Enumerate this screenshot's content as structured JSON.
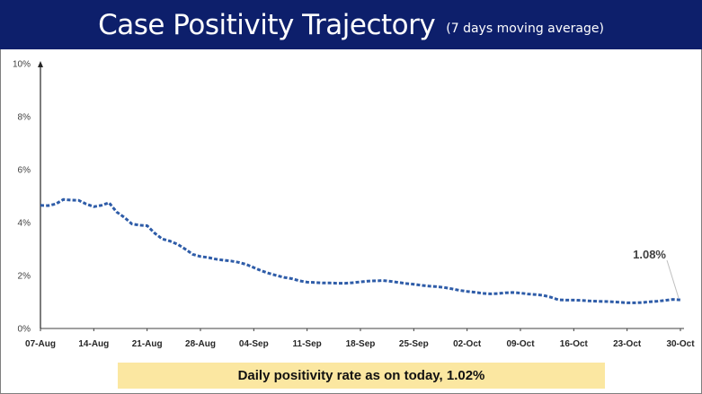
{
  "header": {
    "title": "Case Positivity Trajectory",
    "subtitle": "(7 days moving average)"
  },
  "footer": {
    "text": "Daily positivity rate as on today, 1.02%"
  },
  "colors": {
    "header_background": "#0d1f6b",
    "line": "#2e5ca8",
    "footer_background": "#fbe7a1",
    "annotation_leader": "#bfbfbf"
  },
  "chart_data": {
    "type": "line",
    "title": "Case Positivity Trajectory",
    "subtitle": "(7 days moving average)",
    "xlabel": "",
    "ylabel": "",
    "grid": false,
    "line_style": "dashed",
    "y_tick_labels": [
      "0%",
      "2%",
      "4%",
      "6%",
      "8%",
      "10%"
    ],
    "ylim": [
      0,
      10
    ],
    "x_tick_labels": [
      "07-Aug",
      "14-Aug",
      "21-Aug",
      "28-Aug",
      "04-Sep",
      "11-Sep",
      "18-Sep",
      "25-Sep",
      "02-Oct",
      "09-Oct",
      "16-Oct",
      "23-Oct",
      "30-Oct"
    ],
    "xlim": [
      "07-Aug",
      "30-Oct"
    ],
    "annotation": {
      "text": "1.08%",
      "date": "30-Oct",
      "value": 1.08
    },
    "series": [
      {
        "x": [
          "07-Aug",
          "08-Aug",
          "09-Aug",
          "10-Aug",
          "11-Aug",
          "12-Aug",
          "13-Aug",
          "14-Aug",
          "15-Aug",
          "16-Aug",
          "17-Aug",
          "18-Aug",
          "19-Aug",
          "20-Aug",
          "21-Aug",
          "22-Aug",
          "23-Aug",
          "24-Aug",
          "25-Aug",
          "26-Aug",
          "27-Aug",
          "28-Aug",
          "29-Aug",
          "30-Aug",
          "31-Aug",
          "01-Sep",
          "02-Sep",
          "03-Sep",
          "04-Sep",
          "05-Sep",
          "06-Sep",
          "07-Sep",
          "08-Sep",
          "09-Sep",
          "10-Sep",
          "11-Sep",
          "12-Sep",
          "13-Sep",
          "14-Sep",
          "15-Sep",
          "16-Sep",
          "17-Sep",
          "18-Sep",
          "19-Sep",
          "20-Sep",
          "21-Sep",
          "22-Sep",
          "23-Sep",
          "24-Sep",
          "25-Sep",
          "26-Sep",
          "27-Sep",
          "28-Sep",
          "29-Sep",
          "30-Sep",
          "01-Oct",
          "02-Oct",
          "03-Oct",
          "04-Oct",
          "05-Oct",
          "06-Oct",
          "07-Oct",
          "08-Oct",
          "09-Oct",
          "10-Oct",
          "11-Oct",
          "12-Oct",
          "13-Oct",
          "14-Oct",
          "15-Oct",
          "16-Oct",
          "17-Oct",
          "18-Oct",
          "19-Oct",
          "20-Oct",
          "21-Oct",
          "22-Oct",
          "23-Oct",
          "24-Oct",
          "25-Oct",
          "26-Oct",
          "27-Oct",
          "28-Oct",
          "29-Oct",
          "30-Oct"
        ],
        "values": [
          4.65,
          4.64,
          4.7,
          4.87,
          4.85,
          4.84,
          4.7,
          4.6,
          4.65,
          4.75,
          4.4,
          4.2,
          3.95,
          3.9,
          3.88,
          3.6,
          3.38,
          3.3,
          3.18,
          3.0,
          2.8,
          2.72,
          2.68,
          2.62,
          2.58,
          2.55,
          2.5,
          2.42,
          2.3,
          2.18,
          2.08,
          2.0,
          1.93,
          1.88,
          1.8,
          1.75,
          1.74,
          1.72,
          1.72,
          1.71,
          1.71,
          1.73,
          1.76,
          1.79,
          1.8,
          1.81,
          1.78,
          1.74,
          1.7,
          1.67,
          1.63,
          1.6,
          1.58,
          1.55,
          1.5,
          1.44,
          1.4,
          1.37,
          1.33,
          1.31,
          1.32,
          1.35,
          1.36,
          1.34,
          1.3,
          1.28,
          1.25,
          1.18,
          1.08,
          1.07,
          1.07,
          1.06,
          1.04,
          1.03,
          1.02,
          1.01,
          0.99,
          0.97,
          0.97,
          0.98,
          1.01,
          1.03,
          1.06,
          1.1,
          1.08
        ]
      }
    ]
  }
}
